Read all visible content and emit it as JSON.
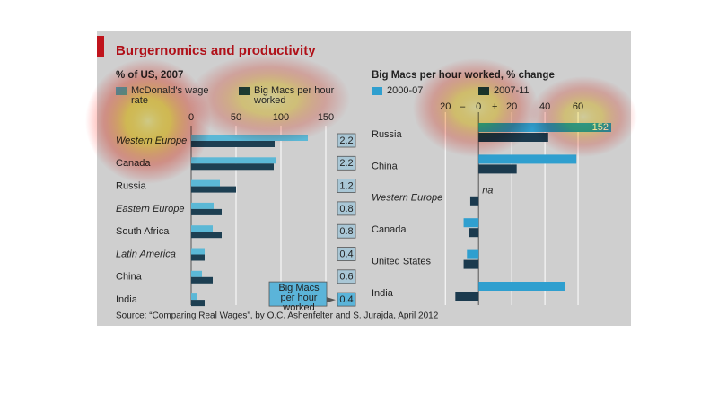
{
  "title": "Burgernomics and productivity",
  "source": "Source: “Comparing Real Wages”, by O.C. Ashenfelter and S. Jurajda, April 2012",
  "chart_data": [
    {
      "type": "hbar",
      "title": "% of US, 2007",
      "categories": [
        "Western Europe",
        "Canada",
        "Russia",
        "Eastern Europe",
        "South Africa",
        "Latin America",
        "China",
        "India"
      ],
      "series": [
        {
          "name": "McDonald's wage rate",
          "color": "#5bb8d6",
          "values": [
            130,
            94,
            32,
            25,
            24,
            15,
            12,
            7
          ]
        },
        {
          "name": "Big Macs per hour worked",
          "color": "#1d3f52",
          "values": [
            93,
            92,
            50,
            34,
            34,
            15,
            24,
            15
          ]
        }
      ],
      "extra_column": {
        "name": "Big Macs per hour worked",
        "values": [
          2.2,
          2.2,
          1.2,
          0.8,
          0.8,
          0.4,
          0.6,
          0.4
        ]
      },
      "xlim": [
        0,
        157
      ],
      "xticks": [
        0,
        50,
        100,
        150
      ],
      "grid": true
    },
    {
      "type": "hbar",
      "title": "Big Macs per hour worked, % change",
      "categories": [
        "Russia",
        "China",
        "Western Europe",
        "Canada",
        "United States",
        "India"
      ],
      "series": [
        {
          "name": "2000-07",
          "color": "#2f9fcf",
          "values": [
            152,
            59,
            null,
            -9,
            -7,
            52
          ],
          "value_labels": [
            "152",
            null,
            "na",
            null,
            null,
            null
          ]
        },
        {
          "name": "2007-11",
          "color": "#1b3a4e",
          "values": [
            42,
            23,
            -5,
            -6,
            -9,
            -14
          ]
        }
      ],
      "xlim": [
        -25,
        80
      ],
      "xticks": [
        {
          "value": -20,
          "label": "20"
        },
        0,
        20,
        40,
        60
      ],
      "sign_labels": [
        "–",
        "+"
      ],
      "grid": true
    }
  ]
}
